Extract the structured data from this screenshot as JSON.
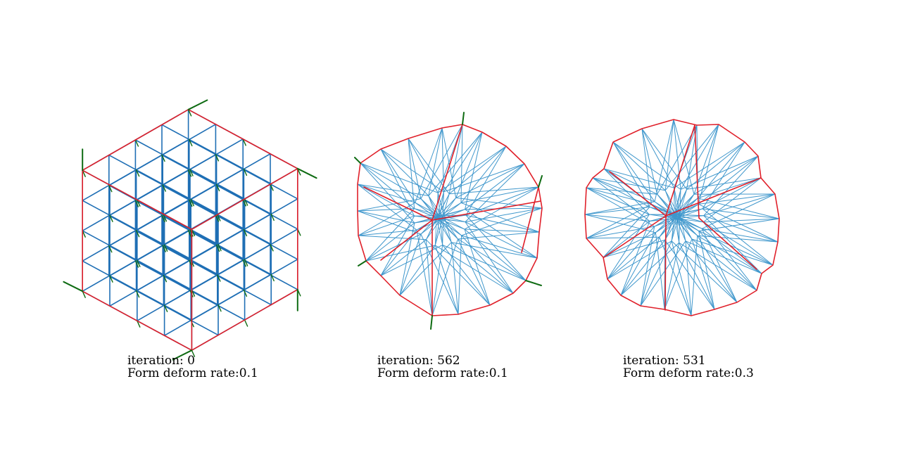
{
  "panels": [
    {
      "iteration": "iteration: 0",
      "rate": "Form deform rate:0.1"
    },
    {
      "iteration": "iteration: 562",
      "rate": "Form deform rate:0.1"
    },
    {
      "iteration": "iteration: 531",
      "rate": "Form deform rate:0.3"
    }
  ],
  "colors": {
    "boundary": "#e0202a",
    "mesh": "#3f97cc",
    "mesh_dense": "#1f6fb5",
    "force": "#0e6b12"
  }
}
